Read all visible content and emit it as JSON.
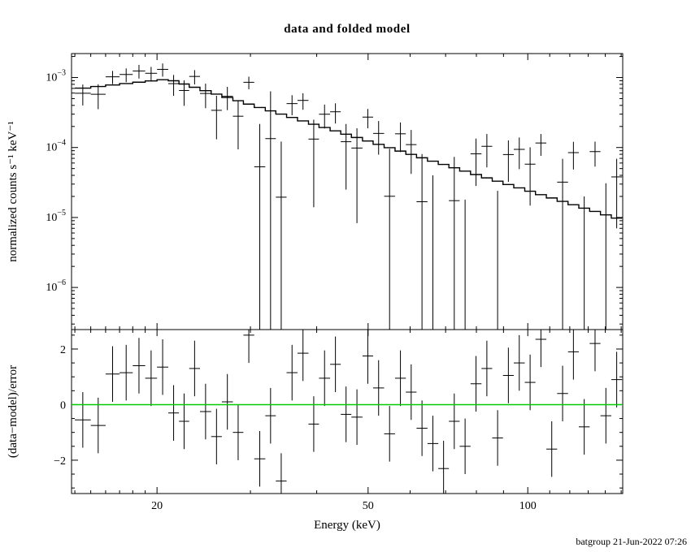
{
  "title": "data and folded model",
  "timestamp": "batgroup 21-Jun-2022 07:26",
  "colors": {
    "foreground": "#000000",
    "background": "#ffffff",
    "zero_line": "#00cc00",
    "timestamp": "#008080"
  },
  "chart_data": {
    "type": "line",
    "title": "data and folded model",
    "xlabel": "Energy (keV)",
    "xscale": "log",
    "xlim": [
      13.8,
      151
    ],
    "xticks": [
      20,
      50,
      100
    ],
    "xticks_minor": [
      14,
      15,
      16,
      17,
      18,
      19,
      30,
      40,
      60,
      70,
      80,
      90,
      110,
      120,
      130,
      140,
      150
    ],
    "legend": "none",
    "grid": false,
    "panels": [
      {
        "name": "spectrum",
        "ylabel": "normalized counts s⁻¹ keV⁻¹",
        "yscale": "log",
        "ylim": [
          2.5e-07,
          0.0022
        ],
        "yticks": [
          0.001,
          0.0001,
          1e-05,
          1e-06
        ]
      },
      {
        "name": "residuals",
        "ylabel": "(data−model)/error",
        "yscale": "linear",
        "ylim": [
          -3.2,
          2.7
        ],
        "yticks": [
          -2,
          0,
          2
        ],
        "yticks_minor": [
          -3,
          -2.5,
          -1.5,
          -1,
          -0.5,
          0.5,
          1,
          1.5,
          2.5
        ]
      }
    ],
    "bin_edges": [
      14.0,
      15.0,
      16.0,
      17.0,
      18.0,
      19.0,
      20.0,
      21.0,
      22.0,
      23.0,
      24.1,
      25.3,
      26.5,
      27.8,
      29.1,
      30.5,
      32.0,
      33.5,
      35.1,
      36.8,
      38.6,
      40.4,
      42.4,
      44.4,
      46.5,
      48.8,
      51.1,
      53.6,
      56.2,
      58.9,
      61.7,
      64.7,
      67.8,
      71.0,
      74.4,
      78.0,
      81.8,
      85.7,
      89.8,
      94.1,
      98.7,
      103.4,
      108.4,
      113.6,
      119.1,
      124.8,
      130.8,
      137.1,
      143.7,
      150.6
    ],
    "model": [
      0.000706,
      0.000745,
      0.000783,
      0.000821,
      0.000858,
      0.000895,
      0.000932,
      0.000899,
      0.000808,
      0.000726,
      0.000649,
      0.00058,
      0.000519,
      0.000466,
      0.000417,
      0.000373,
      0.000334,
      0.0003,
      0.000269,
      0.00024,
      0.000215,
      0.000193,
      0.000173,
      0.000155,
      0.000139,
      0.000124,
      0.000111,
      9.94e-05,
      8.89e-05,
      7.97e-05,
      7.13e-05,
      6.38e-05,
      5.73e-05,
      5.13e-05,
      4.6e-05,
      4.11e-05,
      3.68e-05,
      3.3e-05,
      2.96e-05,
      2.65e-05,
      2.37e-05,
      2.12e-05,
      1.9e-05,
      1.7e-05,
      1.52e-05,
      1.36e-05,
      1.22e-05,
      1.09e-05,
      9.79e-06
    ],
    "data": [
      0.000597,
      0.000577,
      0.001024,
      0.001104,
      0.001242,
      0.00115,
      0.001309,
      0.000818,
      0.000653,
      0.001037,
      0.000592,
      0.00034,
      0.000539,
      0.00028,
      0.000855,
      5.3e-05,
      0.000134,
      1.95e-05,
      0.000424,
      0.000471,
      0.000132,
      0.000299,
      0.000324,
      0.000121,
      9.83e-05,
      0.000272,
      0.000159,
      2.01e-05,
      0.000157,
      0.00011,
      1.68e-05,
      -2.1e-05,
      -7.4e-05,
      1.74e-05,
      -3.7e-05,
      8.12e-05,
      0.000104,
      -2.6e-05,
      7.93e-05,
      9.41e-05,
      5.78e-05,
      0.000116,
      -4.2e-05,
      3.2e-05,
      8.45e-05,
      -1.5e-05,
      8.74e-05,
      -2.2e-06,
      3.8e-05
    ],
    "data_err": [
      0.000198,
      0.000224,
      0.000219,
      0.000246,
      0.000275,
      0.000269,
      0.00028,
      0.00027,
      0.000259,
      0.00024,
      0.000227,
      0.000209,
      0.000197,
      0.000186,
      0.000175,
      0.000164,
      0.000501,
      0.000102,
      0.000135,
      0.000125,
      0.000118,
      0.000112,
      0.000104,
      9.6e-05,
      9e-05,
      8.4e-05,
      8e-05,
      7.6e-05,
      7.1e-05,
      6.8e-05,
      6.4e-05,
      6.1e-05,
      5.7e-05,
      5.6e-05,
      5.5e-05,
      5.3e-05,
      5.2e-05,
      5e-05,
      4.7e-05,
      4.5e-05,
      4.3e-05,
      4e-05,
      3.8e-05,
      3.7e-05,
      3.6e-05,
      3.5e-05,
      3.4e-05,
      3.3e-05,
      3.1e-05
    ],
    "residuals": [
      -0.55,
      -0.75,
      1.1,
      1.15,
      1.4,
      0.95,
      1.35,
      -0.3,
      -0.6,
      1.3,
      -0.25,
      -1.15,
      0.1,
      -1.0,
      2.5,
      -1.95,
      -0.4,
      -2.75,
      1.15,
      1.85,
      -0.7,
      0.95,
      1.45,
      -0.35,
      -0.45,
      1.75,
      0.6,
      -1.05,
      0.95,
      0.45,
      -0.85,
      -1.4,
      -2.3,
      -0.6,
      -1.5,
      0.75,
      1.3,
      -1.2,
      1.05,
      1.5,
      0.8,
      2.35,
      -1.6,
      0.4,
      1.9,
      -0.8,
      2.2,
      -0.4,
      0.9
    ],
    "residual_err": 1.0
  }
}
